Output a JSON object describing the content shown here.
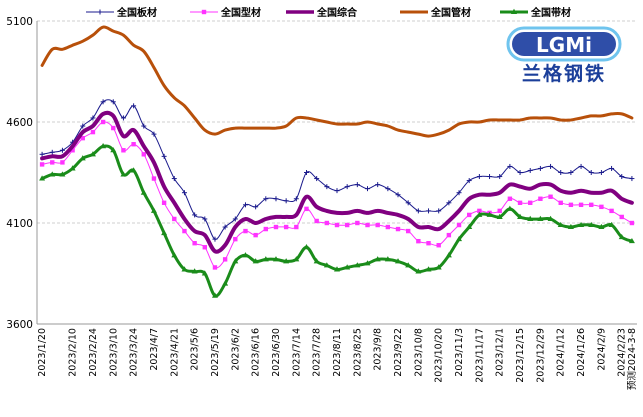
{
  "chart_data": {
    "type": "line",
    "ylim": [
      3600,
      5100
    ],
    "yticks": [
      3600,
      4100,
      4600,
      5100
    ],
    "grid": true,
    "legend_position": "top",
    "x_count": 59,
    "x_labels": [
      {
        "i": 0,
        "label": "2023/1/20"
      },
      {
        "i": 3,
        "label": "2023/2/10"
      },
      {
        "i": 5,
        "label": "2023/2/24"
      },
      {
        "i": 7,
        "label": "2023/3/10"
      },
      {
        "i": 9,
        "label": "2023/3/24"
      },
      {
        "i": 11,
        "label": "2023/4/7"
      },
      {
        "i": 13,
        "label": "2023/4/21"
      },
      {
        "i": 15,
        "label": "2023/5/6"
      },
      {
        "i": 17,
        "label": "2023/5/19"
      },
      {
        "i": 19,
        "label": "2023/6/2"
      },
      {
        "i": 21,
        "label": "2023/6/16"
      },
      {
        "i": 23,
        "label": "2023/6/30"
      },
      {
        "i": 25,
        "label": "2023/7/14"
      },
      {
        "i": 27,
        "label": "2023/7/28"
      },
      {
        "i": 29,
        "label": "2023/8/11"
      },
      {
        "i": 31,
        "label": "2023/8/25"
      },
      {
        "i": 33,
        "label": "2023/9/8"
      },
      {
        "i": 35,
        "label": "2023/9/22"
      },
      {
        "i": 37,
        "label": "2023/10/8"
      },
      {
        "i": 39,
        "label": "2023/10/20"
      },
      {
        "i": 41,
        "label": "2023/11/3"
      },
      {
        "i": 43,
        "label": "2023/11/17"
      },
      {
        "i": 45,
        "label": "2023/12/1"
      },
      {
        "i": 47,
        "label": "2023/12/15"
      },
      {
        "i": 49,
        "label": "2023/12/29"
      },
      {
        "i": 51,
        "label": "2024/1/12"
      },
      {
        "i": 53,
        "label": "2024/1/26"
      },
      {
        "i": 55,
        "label": "2024/2/9"
      },
      {
        "i": 57,
        "label": "2024/2/23"
      },
      {
        "i": 58,
        "label": "预测2024-3-8"
      }
    ],
    "series": [
      {
        "name": "全国板材",
        "color": "#1a1a8c",
        "marker": "plus",
        "width": 1,
        "values": [
          4440,
          4450,
          4460,
          4500,
          4580,
          4620,
          4700,
          4700,
          4620,
          4680,
          4580,
          4540,
          4430,
          4320,
          4250,
          4140,
          4120,
          4020,
          4080,
          4120,
          4190,
          4180,
          4220,
          4220,
          4210,
          4220,
          4350,
          4320,
          4280,
          4260,
          4280,
          4290,
          4270,
          4290,
          4270,
          4240,
          4200,
          4160,
          4160,
          4160,
          4200,
          4250,
          4310,
          4330,
          4330,
          4330,
          4380,
          4350,
          4360,
          4370,
          4380,
          4350,
          4350,
          4380,
          4350,
          4350,
          4370,
          4330,
          4320
        ]
      },
      {
        "name": "全国型材",
        "color": "#ff33ff",
        "marker": "square",
        "width": 1,
        "values": [
          4390,
          4400,
          4400,
          4460,
          4520,
          4550,
          4600,
          4570,
          4460,
          4490,
          4440,
          4320,
          4200,
          4120,
          4060,
          4000,
          3980,
          3880,
          3920,
          4020,
          4060,
          4040,
          4070,
          4080,
          4080,
          4080,
          4170,
          4110,
          4100,
          4090,
          4090,
          4100,
          4090,
          4090,
          4080,
          4070,
          4060,
          4010,
          4000,
          3990,
          4040,
          4090,
          4140,
          4160,
          4150,
          4160,
          4220,
          4200,
          4200,
          4220,
          4230,
          4200,
          4190,
          4190,
          4190,
          4180,
          4160,
          4130,
          4100
        ]
      },
      {
        "name": "全国综合",
        "color": "#800080",
        "marker": "none",
        "width": 4,
        "values": [
          4420,
          4430,
          4430,
          4480,
          4550,
          4580,
          4640,
          4630,
          4530,
          4560,
          4480,
          4400,
          4280,
          4200,
          4120,
          4060,
          4040,
          3960,
          3990,
          4080,
          4120,
          4100,
          4120,
          4130,
          4130,
          4140,
          4230,
          4180,
          4160,
          4150,
          4150,
          4160,
          4150,
          4160,
          4150,
          4140,
          4120,
          4080,
          4080,
          4070,
          4110,
          4160,
          4220,
          4240,
          4240,
          4250,
          4290,
          4280,
          4270,
          4290,
          4290,
          4260,
          4250,
          4260,
          4250,
          4250,
          4260,
          4220,
          4200
        ]
      },
      {
        "name": "全国管材",
        "color": "#b8500a",
        "marker": "none",
        "width": 3,
        "values": [
          4880,
          4960,
          4960,
          4980,
          5000,
          5030,
          5070,
          5050,
          5030,
          4980,
          4950,
          4870,
          4780,
          4720,
          4680,
          4620,
          4560,
          4540,
          4560,
          4570,
          4570,
          4570,
          4570,
          4570,
          4580,
          4620,
          4620,
          4610,
          4600,
          4590,
          4590,
          4590,
          4600,
          4590,
          4580,
          4560,
          4550,
          4540,
          4530,
          4540,
          4560,
          4590,
          4600,
          4600,
          4610,
          4610,
          4610,
          4610,
          4620,
          4620,
          4620,
          4610,
          4610,
          4620,
          4630,
          4630,
          4640,
          4640,
          4620
        ]
      },
      {
        "name": "全国带材",
        "color": "#1a8c1a",
        "marker": "triangle",
        "width": 3,
        "values": [
          4320,
          4340,
          4340,
          4370,
          4420,
          4440,
          4480,
          4460,
          4340,
          4360,
          4250,
          4160,
          4050,
          3940,
          3870,
          3860,
          3850,
          3740,
          3800,
          3910,
          3940,
          3910,
          3920,
          3920,
          3910,
          3920,
          3980,
          3910,
          3890,
          3870,
          3880,
          3890,
          3900,
          3920,
          3920,
          3910,
          3890,
          3860,
          3870,
          3880,
          3940,
          4020,
          4080,
          4140,
          4140,
          4130,
          4170,
          4130,
          4120,
          4120,
          4120,
          4090,
          4080,
          4090,
          4090,
          4080,
          4090,
          4030,
          4010
        ]
      }
    ]
  },
  "logo": {
    "letters": "LGMi",
    "subtitle": "兰格钢铁",
    "colors": {
      "bg": "#2f4ea8",
      "ring": "#6fc4ee",
      "text": "#ffffff",
      "subtitle": "#1b3f9a"
    }
  }
}
